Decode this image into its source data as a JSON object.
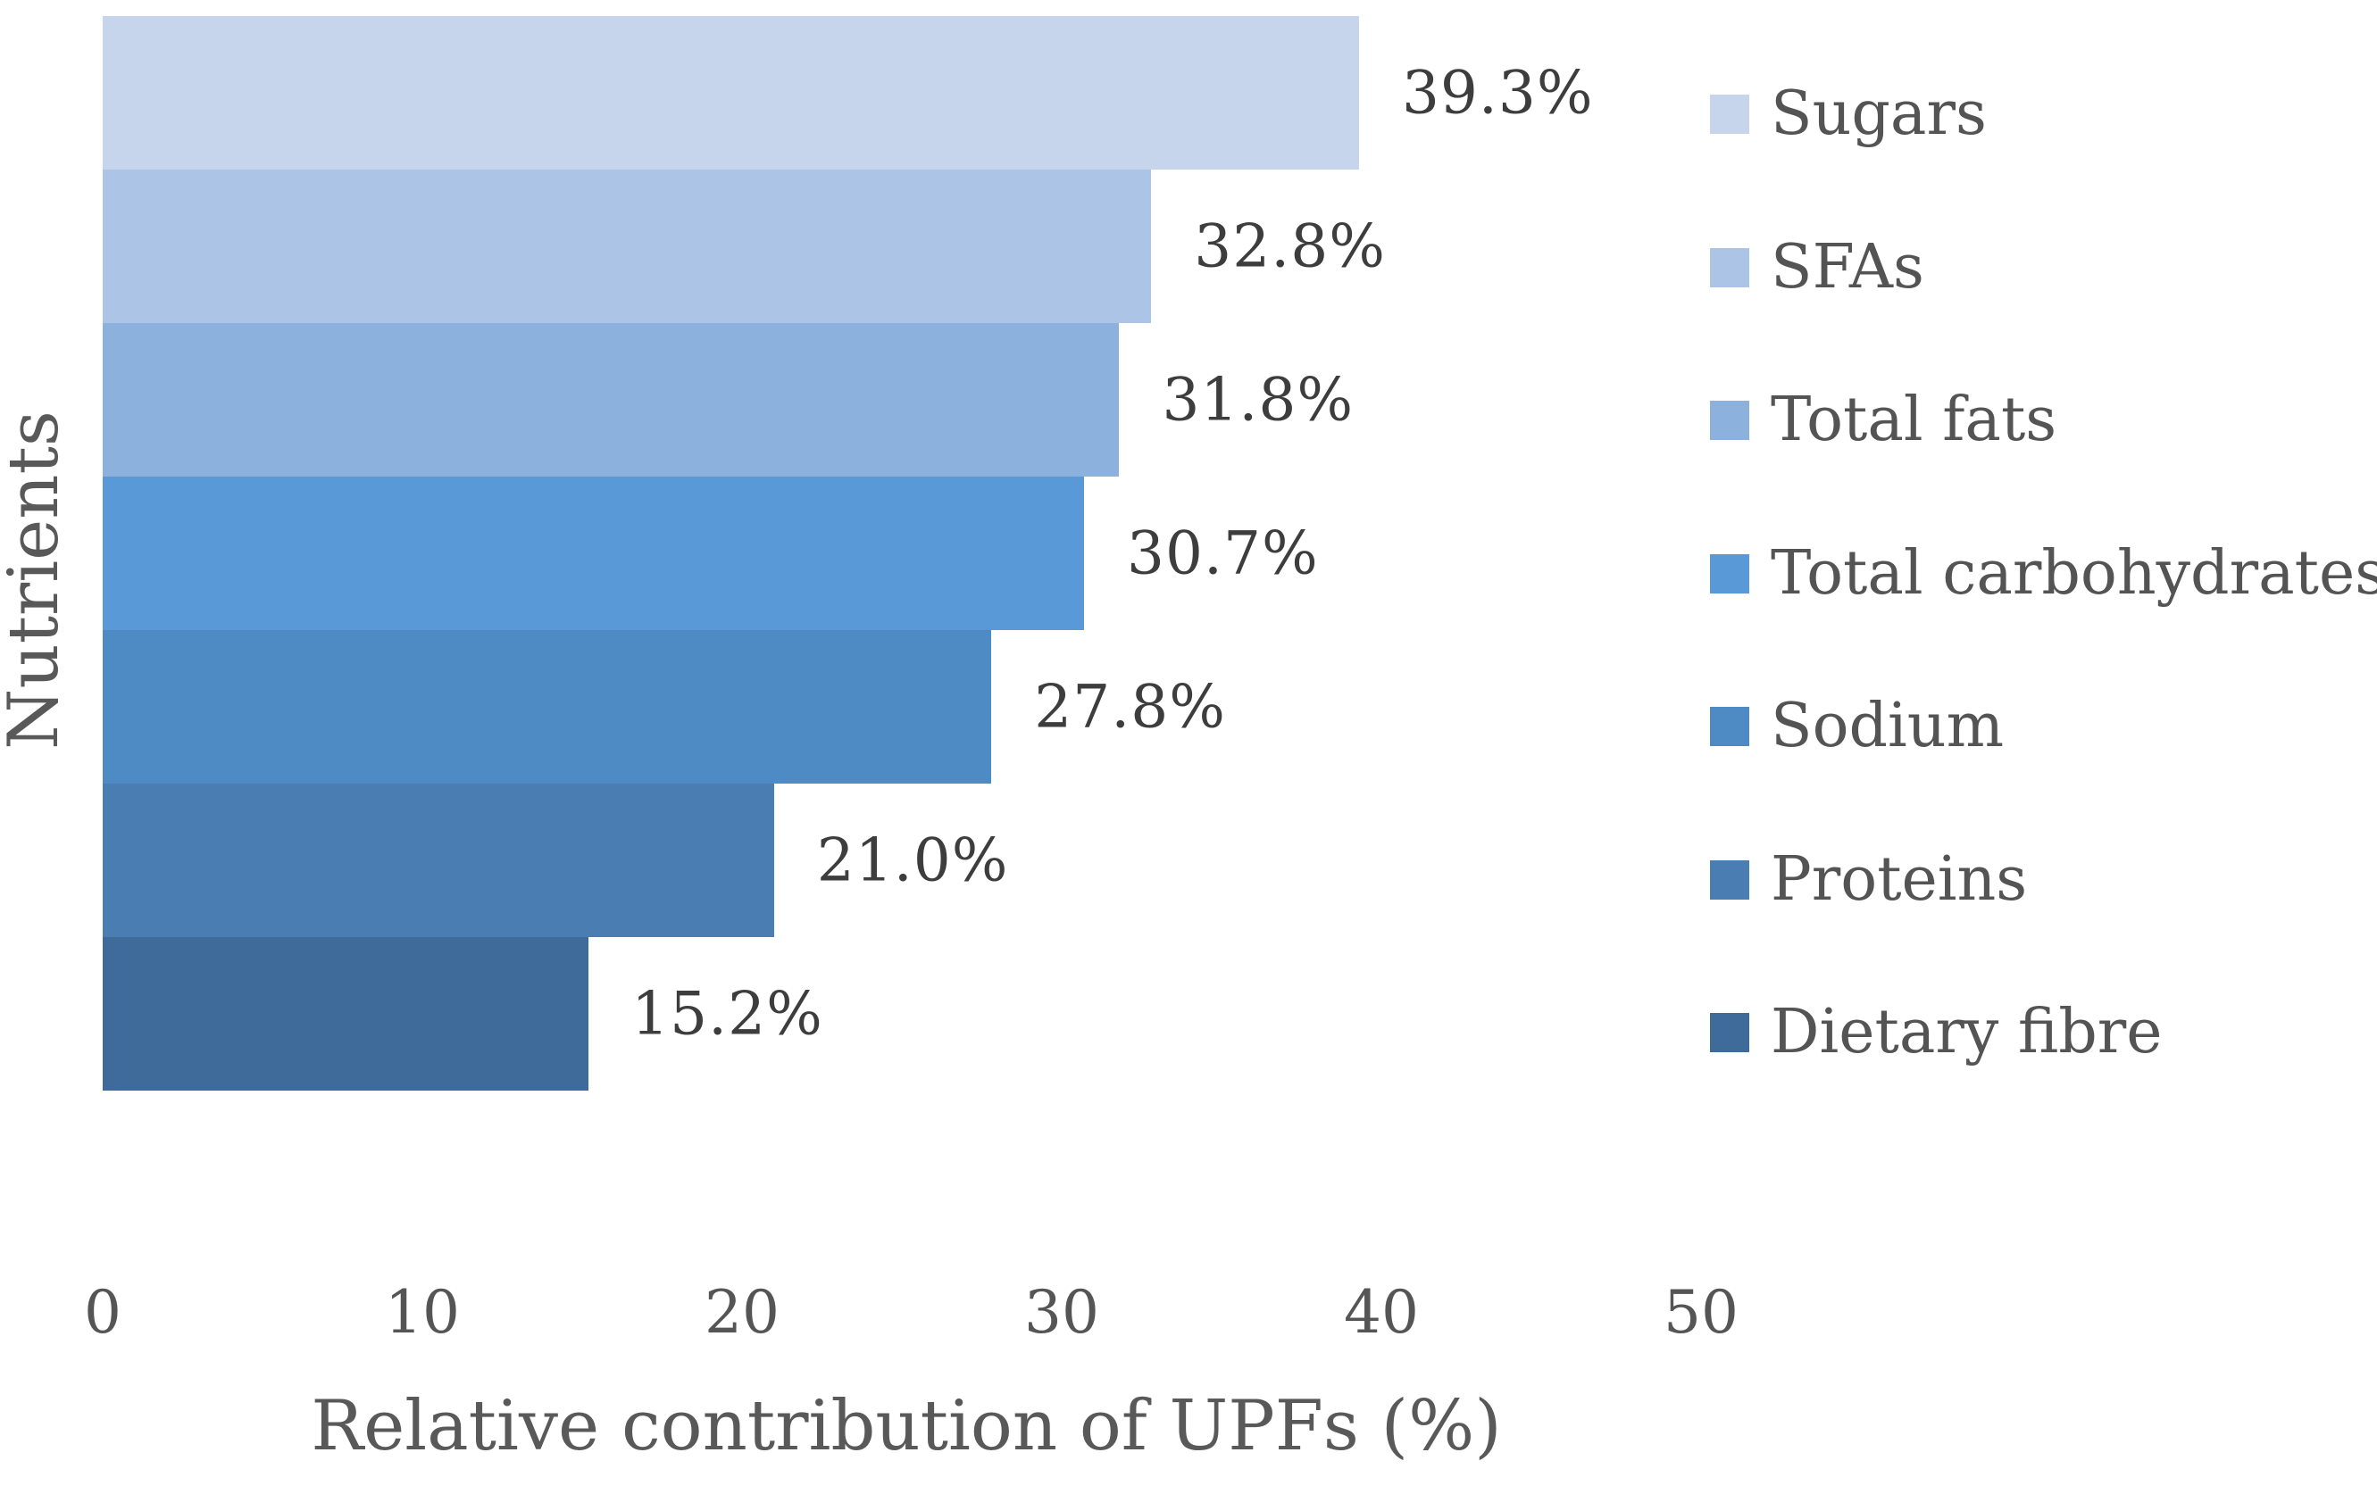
{
  "chart_data": {
    "type": "bar",
    "orientation": "horizontal",
    "title": "",
    "xlabel": "Relative contribution of UPFs (%)",
    "ylabel": "Nutrients",
    "categories": [
      "Sugars",
      "SFAs",
      "Total fats",
      "Total carbohydrates",
      "Sodium",
      "Proteins",
      "Dietary fibre"
    ],
    "values": [
      39.3,
      32.8,
      31.8,
      30.7,
      27.8,
      21.0,
      15.2
    ],
    "value_labels": [
      "39.3%",
      "32.8%",
      "31.8%",
      "30.7%",
      "27.8%",
      "21.0%",
      "15.2%"
    ],
    "bar_colors": [
      "#c6d5ec",
      "#acc5e6",
      "#8bb1dc",
      "#5a99d8",
      "#4e8ac4",
      "#4a7db2",
      "#3e6b99"
    ],
    "xlim": [
      0,
      50
    ],
    "xticks": [
      0,
      10,
      20,
      30,
      40,
      50
    ],
    "xtick_labels": [
      "0",
      "10",
      "20",
      "30",
      "40",
      "50"
    ],
    "grid": false,
    "legend_position": "right",
    "data_label_color": "#3d3d3d",
    "axis_text_color": "#595959"
  }
}
